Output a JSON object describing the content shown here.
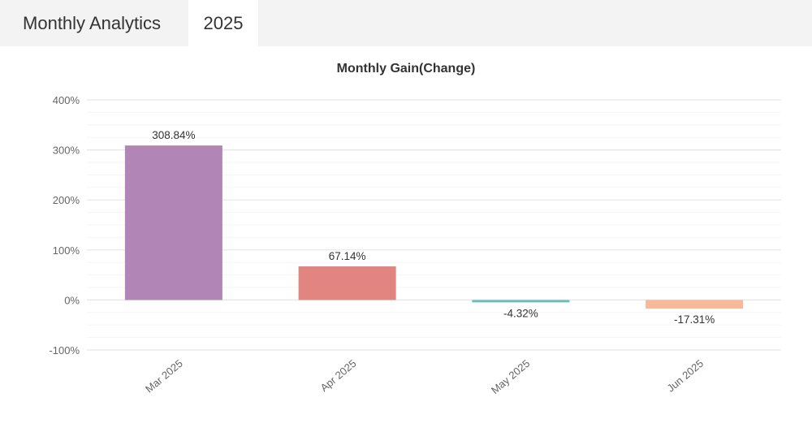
{
  "tabs": [
    {
      "label": "Monthly Analytics"
    },
    {
      "label": "2025"
    }
  ],
  "chart_data": {
    "type": "bar",
    "title": "Monthly Gain(Change)",
    "xlabel": "",
    "ylabel": "",
    "categories": [
      "Mar 2025",
      "Apr 2025",
      "May 2025",
      "Jun 2025"
    ],
    "values": [
      308.84,
      67.14,
      -4.32,
      -17.31
    ],
    "data_labels": [
      "308.84%",
      "67.14%",
      "-4.32%",
      "-17.31%"
    ],
    "colors": [
      "#b185b5",
      "#e28580",
      "#6ebcc0",
      "#f7b99a"
    ],
    "ylim": [
      -100,
      400
    ],
    "yticks": [
      -100,
      0,
      100,
      200,
      300,
      400
    ],
    "ytick_labels": [
      "-100%",
      "0%",
      "100%",
      "200%",
      "300%",
      "400%"
    ],
    "grid": true,
    "legend": "none"
  }
}
